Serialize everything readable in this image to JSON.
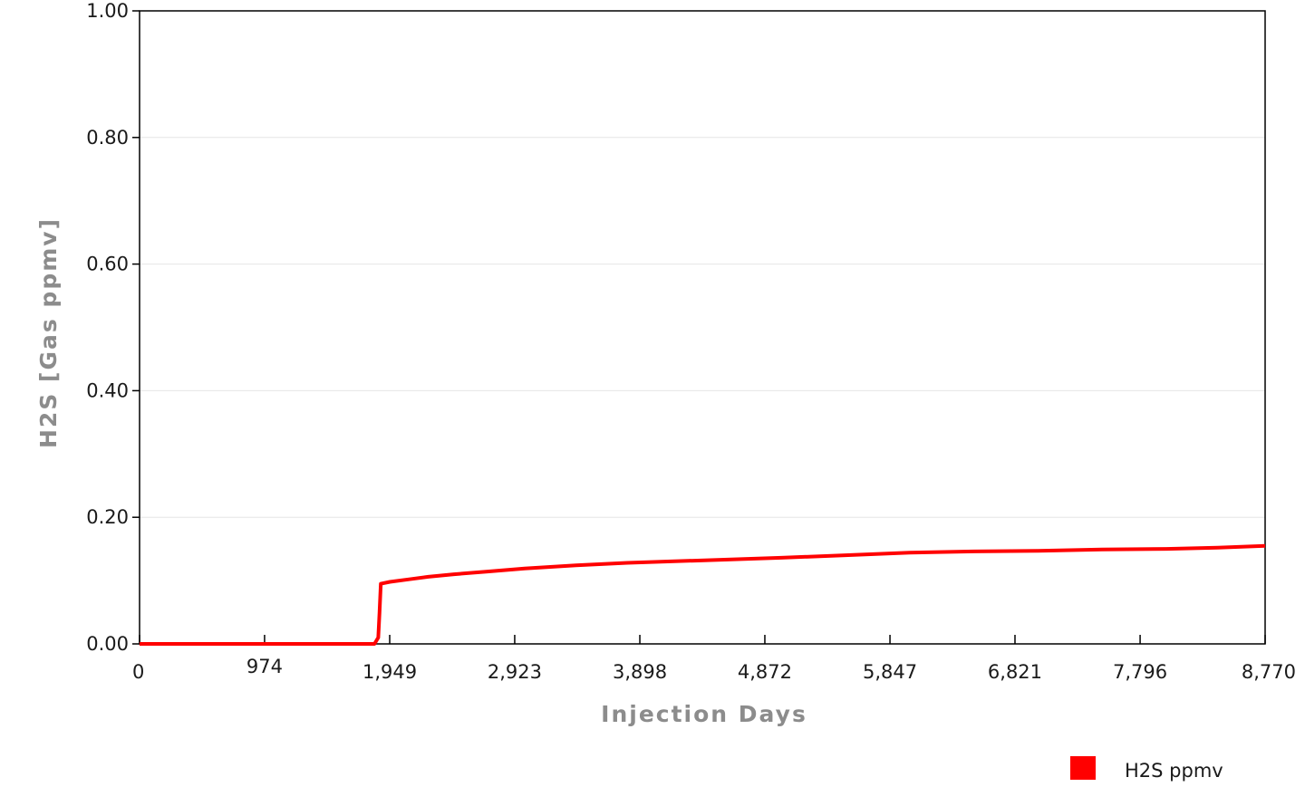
{
  "chart_data": {
    "type": "line",
    "xlabel": "Injection Days",
    "ylabel": "H2S [Gas ppmv]",
    "xlim": [
      0,
      8770
    ],
    "ylim": [
      0,
      1.0
    ],
    "x_ticks": [
      "0",
      "974",
      "1,949",
      "2,923",
      "3,898",
      "4,872",
      "5,847",
      "6,821",
      "7,796",
      "8,770"
    ],
    "x_tick_values": [
      0,
      974,
      1949,
      2923,
      3898,
      4872,
      5847,
      6821,
      7796,
      8770
    ],
    "y_ticks": [
      "0.00",
      "0.20",
      "0.40",
      "0.60",
      "0.80",
      "1.00"
    ],
    "y_tick_values": [
      0,
      0.2,
      0.4,
      0.6,
      0.8,
      1.0
    ],
    "grid": true,
    "legend_position": "bottom-right",
    "series": [
      {
        "name": "H2S ppmv",
        "color": "#ff0000",
        "x": [
          0,
          1830,
          1860,
          1870,
          1880,
          1950,
          2100,
          2250,
          2450,
          2700,
          3000,
          3400,
          3800,
          4400,
          5000,
          5500,
          6000,
          6500,
          7000,
          7500,
          8000,
          8400,
          8770
        ],
        "y": [
          0.0,
          0.0,
          0.01,
          0.05,
          0.095,
          0.098,
          0.102,
          0.106,
          0.11,
          0.114,
          0.119,
          0.124,
          0.128,
          0.132,
          0.136,
          0.14,
          0.144,
          0.146,
          0.147,
          0.149,
          0.15,
          0.152,
          0.155
        ]
      }
    ]
  }
}
